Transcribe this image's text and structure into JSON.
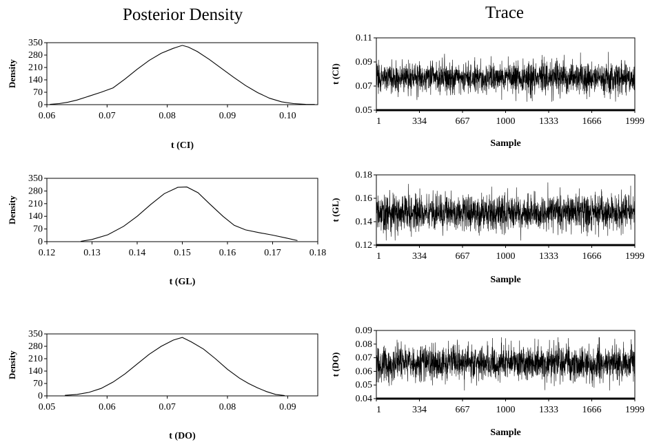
{
  "titles": {
    "left": "Posterior Density",
    "right": "Trace"
  },
  "chart_data": [
    {
      "type": "line",
      "xlabel": "t (CI)",
      "ylabel": "Density",
      "xlim": [
        0.06,
        0.105
      ],
      "ylim": [
        0,
        350
      ],
      "xticks": [
        "0.06",
        "0.07",
        "0.08",
        "0.09",
        "0.10"
      ],
      "yticks": [
        "0",
        "70",
        "140",
        "210",
        "280",
        "350"
      ],
      "x": [
        0.0605,
        0.062,
        0.0635,
        0.065,
        0.067,
        0.069,
        0.071,
        0.073,
        0.075,
        0.077,
        0.079,
        0.081,
        0.0825,
        0.0835,
        0.085,
        0.087,
        0.089,
        0.091,
        0.093,
        0.095,
        0.097,
        0.099,
        0.101,
        0.103,
        0.1045
      ],
      "y": [
        2,
        6,
        14,
        26,
        48,
        70,
        95,
        145,
        200,
        250,
        290,
        318,
        335,
        325,
        300,
        255,
        205,
        155,
        108,
        68,
        36,
        16,
        6,
        2,
        1
      ]
    },
    {
      "type": "line",
      "xlabel": "t (GL)",
      "ylabel": "Density",
      "xlim": [
        0.12,
        0.18
      ],
      "ylim": [
        0,
        350
      ],
      "xticks": [
        "0.12",
        "0.13",
        "0.14",
        "0.15",
        "0.16",
        "0.17",
        "0.18"
      ],
      "yticks": [
        "0",
        "70",
        "140",
        "210",
        "280",
        "350"
      ],
      "x": [
        0.1275,
        0.13,
        0.1335,
        0.137,
        0.14,
        0.143,
        0.146,
        0.149,
        0.151,
        0.1535,
        0.156,
        0.159,
        0.1615,
        0.164,
        0.167,
        0.17,
        0.173,
        0.1755
      ],
      "y": [
        2,
        12,
        38,
        85,
        140,
        205,
        265,
        300,
        302,
        270,
        210,
        140,
        90,
        65,
        50,
        36,
        20,
        6
      ]
    },
    {
      "type": "line",
      "xlabel": "t (DO)",
      "ylabel": "Density",
      "xlim": [
        0.05,
        0.095
      ],
      "ylim": [
        0,
        350
      ],
      "xticks": [
        "0.05",
        "0.06",
        "0.07",
        "0.08",
        "0.09"
      ],
      "yticks": [
        "0",
        "70",
        "140",
        "210",
        "280",
        "350"
      ],
      "x": [
        0.053,
        0.055,
        0.057,
        0.059,
        0.061,
        0.063,
        0.065,
        0.067,
        0.069,
        0.071,
        0.0725,
        0.074,
        0.076,
        0.078,
        0.08,
        0.082,
        0.0835,
        0.085,
        0.0865,
        0.088,
        0.0895
      ],
      "y": [
        3,
        8,
        20,
        42,
        78,
        125,
        180,
        235,
        280,
        315,
        330,
        305,
        265,
        210,
        150,
        100,
        70,
        45,
        24,
        8,
        2
      ]
    },
    {
      "type": "line",
      "xlabel": "Sample",
      "ylabel": "t (CI)",
      "xlim": [
        1,
        1999
      ],
      "ylim": [
        0.05,
        0.11
      ],
      "xticks": [
        "1",
        "334",
        "667",
        "1000",
        "1333",
        "1666",
        "1999"
      ],
      "yticks": [
        "0.05",
        "0.07",
        "0.09",
        "0.11"
      ],
      "mean": 0.077,
      "sd": 0.0065,
      "spread_min": 0.057,
      "spread_max": 0.101,
      "samples": 1999
    },
    {
      "type": "line",
      "xlabel": "Sample",
      "ylabel": "t (GL)",
      "xlim": [
        1,
        1999
      ],
      "ylim": [
        0.12,
        0.18
      ],
      "xticks": [
        "1",
        "334",
        "667",
        "1000",
        "1333",
        "1666",
        "1999"
      ],
      "yticks": [
        "0.12",
        "0.14",
        "0.16",
        "0.18"
      ],
      "mean": 0.148,
      "sd": 0.0075,
      "spread_min": 0.124,
      "spread_max": 0.176,
      "samples": 1999
    },
    {
      "type": "line",
      "xlabel": "Sample",
      "ylabel": "t (DO)",
      "xlim": [
        1,
        1999
      ],
      "ylim": [
        0.04,
        0.09
      ],
      "xticks": [
        "1",
        "334",
        "667",
        "1000",
        "1333",
        "1666",
        "1999"
      ],
      "yticks": [
        "0.04",
        "0.05",
        "0.06",
        "0.07",
        "0.08",
        "0.09"
      ],
      "mean": 0.066,
      "sd": 0.0065,
      "spread_min": 0.046,
      "spread_max": 0.085,
      "samples": 1999
    }
  ]
}
